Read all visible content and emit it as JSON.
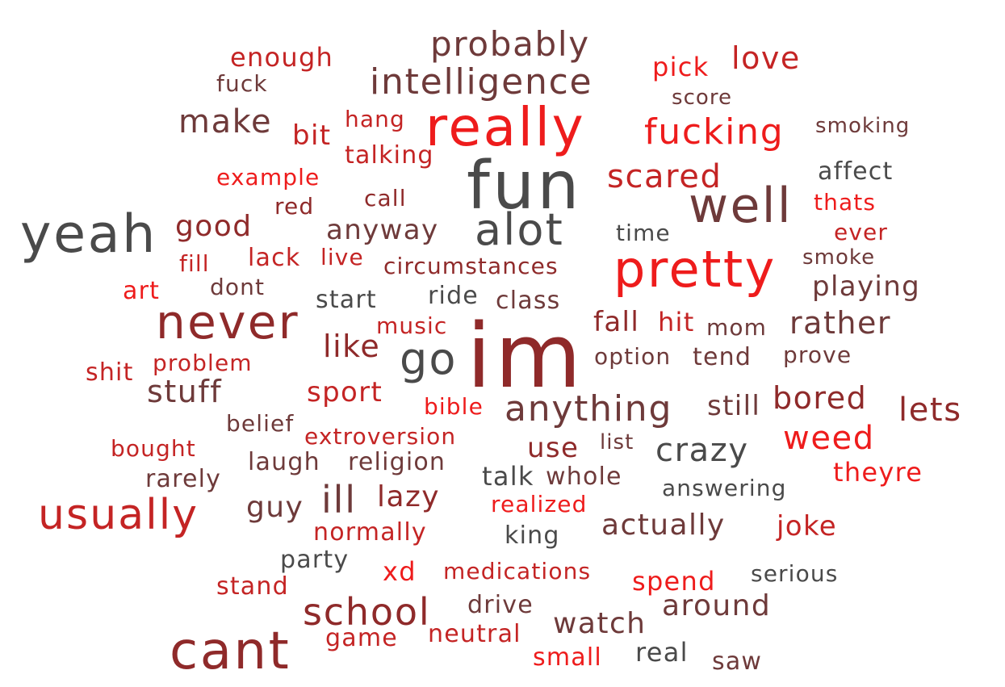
{
  "palette": {
    "dark": "#4a4a4a",
    "brown": "#6e3a3a",
    "maroon": "#8f2a2a",
    "crimson": "#c42424",
    "red": "#ee1c1c"
  },
  "words": [
    {
      "text": "im",
      "color": "maroon"
    },
    {
      "text": "fun",
      "color": "dark"
    },
    {
      "text": "really",
      "color": "red"
    },
    {
      "text": "yeah",
      "color": "dark"
    },
    {
      "text": "cant",
      "color": "maroon"
    },
    {
      "text": "pretty",
      "color": "red"
    },
    {
      "text": "never",
      "color": "maroon"
    },
    {
      "text": "well",
      "color": "brown"
    },
    {
      "text": "usually",
      "color": "crimson"
    },
    {
      "text": "alot",
      "color": "dark"
    },
    {
      "text": "go",
      "color": "dark"
    },
    {
      "text": "intelligence",
      "color": "brown"
    },
    {
      "text": "school",
      "color": "maroon"
    },
    {
      "text": "anything",
      "color": "brown"
    },
    {
      "text": "fucking",
      "color": "red"
    },
    {
      "text": "probably",
      "color": "brown"
    },
    {
      "text": "scared",
      "color": "crimson"
    },
    {
      "text": "make",
      "color": "brown"
    },
    {
      "text": "ill",
      "color": "brown"
    },
    {
      "text": "crazy",
      "color": "dark"
    },
    {
      "text": "weed",
      "color": "red"
    },
    {
      "text": "bored",
      "color": "maroon"
    },
    {
      "text": "lets",
      "color": "maroon"
    },
    {
      "text": "rather",
      "color": "brown"
    },
    {
      "text": "love",
      "color": "crimson"
    },
    {
      "text": "stuff",
      "color": "brown"
    },
    {
      "text": "watch",
      "color": "brown"
    },
    {
      "text": "around",
      "color": "brown"
    },
    {
      "text": "actually",
      "color": "brown"
    },
    {
      "text": "good",
      "color": "maroon"
    },
    {
      "text": "like",
      "color": "maroon"
    },
    {
      "text": "anyway",
      "color": "brown"
    },
    {
      "text": "playing",
      "color": "brown"
    },
    {
      "text": "sport",
      "color": "crimson"
    },
    {
      "text": "lazy",
      "color": "maroon"
    },
    {
      "text": "guy",
      "color": "brown"
    },
    {
      "text": "joke",
      "color": "crimson"
    },
    {
      "text": "still",
      "color": "brown"
    },
    {
      "text": "use",
      "color": "maroon"
    },
    {
      "text": "bit",
      "color": "crimson"
    },
    {
      "text": "enough",
      "color": "crimson"
    },
    {
      "text": "pick",
      "color": "red"
    },
    {
      "text": "talking",
      "color": "crimson"
    },
    {
      "text": "affect",
      "color": "dark"
    },
    {
      "text": "fall",
      "color": "maroon"
    },
    {
      "text": "hit",
      "color": "crimson"
    },
    {
      "text": "talk",
      "color": "dark"
    },
    {
      "text": "whole",
      "color": "brown"
    },
    {
      "text": "theyre",
      "color": "red"
    },
    {
      "text": "spend",
      "color": "red"
    },
    {
      "text": "lack",
      "color": "crimson"
    },
    {
      "text": "mom",
      "color": "brown"
    },
    {
      "text": "start",
      "color": "dark"
    },
    {
      "text": "class",
      "color": "brown"
    },
    {
      "text": "ride",
      "color": "dark"
    },
    {
      "text": "music",
      "color": "crimson"
    },
    {
      "text": "problem",
      "color": "crimson"
    },
    {
      "text": "shit",
      "color": "crimson"
    },
    {
      "text": "religion",
      "color": "brown"
    },
    {
      "text": "laugh",
      "color": "brown"
    },
    {
      "text": "rarely",
      "color": "brown"
    },
    {
      "text": "answering",
      "color": "dark"
    },
    {
      "text": "realized",
      "color": "red"
    },
    {
      "text": "normally",
      "color": "crimson"
    },
    {
      "text": "king",
      "color": "dark"
    },
    {
      "text": "party",
      "color": "dark"
    },
    {
      "text": "xd",
      "color": "red"
    },
    {
      "text": "medications",
      "color": "crimson"
    },
    {
      "text": "serious",
      "color": "dark"
    },
    {
      "text": "stand",
      "color": "crimson"
    },
    {
      "text": "drive",
      "color": "brown"
    },
    {
      "text": "game",
      "color": "crimson"
    },
    {
      "text": "neutral",
      "color": "crimson"
    },
    {
      "text": "small",
      "color": "red"
    },
    {
      "text": "real",
      "color": "dark"
    },
    {
      "text": "saw",
      "color": "brown"
    },
    {
      "text": "fuck",
      "color": "brown"
    },
    {
      "text": "hang",
      "color": "crimson"
    },
    {
      "text": "score",
      "color": "brown"
    },
    {
      "text": "smoking",
      "color": "brown"
    },
    {
      "text": "example",
      "color": "red"
    },
    {
      "text": "call",
      "color": "maroon"
    },
    {
      "text": "red",
      "color": "maroon"
    },
    {
      "text": "thats",
      "color": "red"
    },
    {
      "text": "time",
      "color": "dark"
    },
    {
      "text": "ever",
      "color": "crimson"
    },
    {
      "text": "fill",
      "color": "crimson"
    },
    {
      "text": "live",
      "color": "crimson"
    },
    {
      "text": "circumstances",
      "color": "maroon"
    },
    {
      "text": "smoke",
      "color": "brown"
    },
    {
      "text": "art",
      "color": "red"
    },
    {
      "text": "dont",
      "color": "brown"
    },
    {
      "text": "option",
      "color": "brown"
    },
    {
      "text": "tend",
      "color": "brown"
    },
    {
      "text": "prove",
      "color": "brown"
    },
    {
      "text": "bible",
      "color": "red"
    },
    {
      "text": "belief",
      "color": "brown"
    },
    {
      "text": "extroversion",
      "color": "crimson"
    },
    {
      "text": "bought",
      "color": "crimson"
    },
    {
      "text": "list",
      "color": "brown"
    }
  ]
}
